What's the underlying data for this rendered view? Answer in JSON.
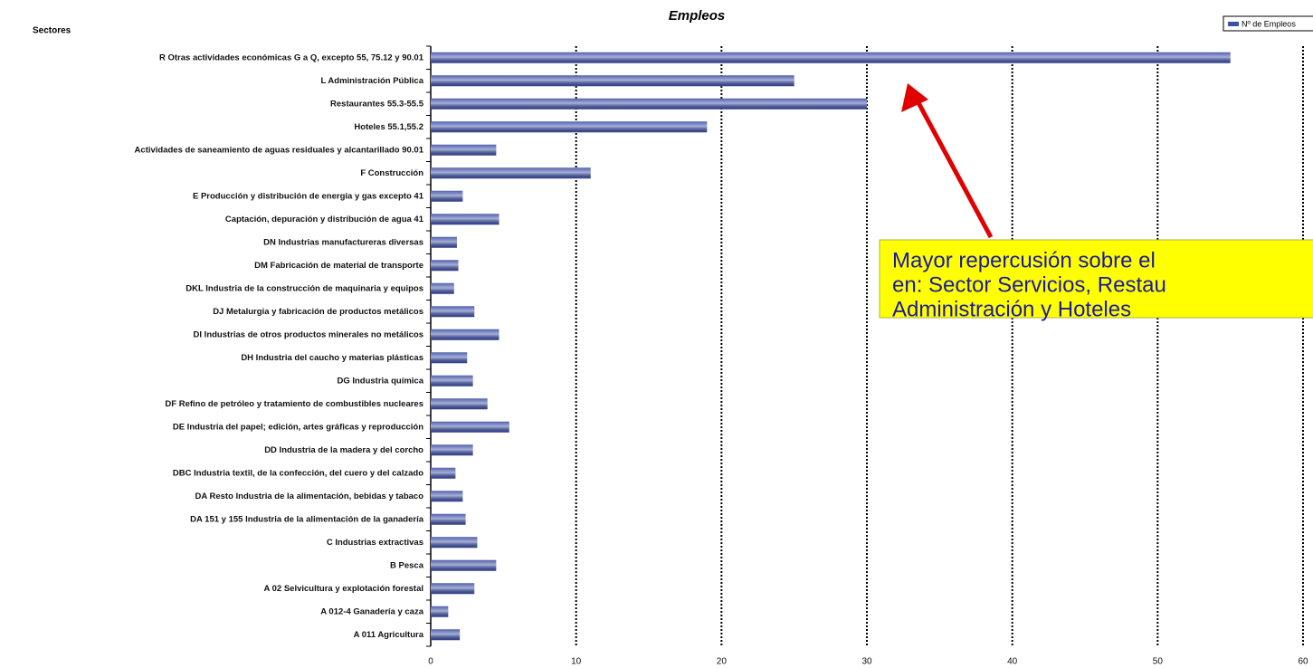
{
  "chart_data": {
    "type": "barh",
    "title": "Empleos",
    "y_axis_label": "Sectores",
    "categories": [
      "R Otras actividades económicas G a Q, excepto 55, 75.12 y 90.01",
      "L Administración Pública",
      "Restaurantes 55.3-55.5",
      "Hoteles 55.1,55.2",
      "Actividades de saneamiento de aguas residuales y alcantarillado 90.01",
      "F Construcción",
      "E Producción y distribución de energía y gas excepto 41",
      "Captación, depuración y distribución de agua 41",
      "DN Industrias manufactureras diversas",
      "DM Fabricación de material de transporte",
      "DKL Industria de la construcción de maquinaria y equipos",
      "DJ Metalurgia y fabricación de productos metálicos",
      "DI Industrias de otros productos minerales no metálicos",
      "DH Industria del caucho y materias plásticas",
      "DG Industria química",
      "DF Refino de petróleo y tratamiento de combustibles nucleares",
      "DE Industria del papel; edición, artes gráficas y reproducción",
      "DD Industria de la madera y del corcho",
      "DBC Industria textil, de la confección, del cuero y del calzado",
      "DA Resto Industria de la alimentación, bebidas y tabaco",
      "DA 151 y 155 Industria de la alimentación de la ganadería",
      "C Industrias extractivas",
      "B Pesca",
      "A 02 Selvicultura y explotación forestal",
      "A 012-4 Ganadería y caza",
      "A 011 Agricultura"
    ],
    "series": [
      {
        "name": "Nº de Empleos",
        "color": "#3d4fa6",
        "values": [
          55,
          25,
          30,
          19,
          4.5,
          11,
          2.2,
          4.7,
          1.8,
          1.9,
          1.6,
          3.0,
          4.7,
          2.5,
          2.9,
          3.9,
          5.4,
          2.9,
          1.7,
          2.2,
          2.4,
          3.2,
          4.5,
          3.0,
          1.2,
          2.0
        ]
      }
    ],
    "xlim": [
      0,
      60
    ],
    "xticks": [
      0,
      10,
      20,
      30,
      40,
      50,
      60
    ],
    "grid": true,
    "legend": "top-right",
    "annotation": [
      "Mayor repercusión sobre el",
      "en: Sector Servicios, Restau",
      "Administración y Hoteles"
    ]
  }
}
